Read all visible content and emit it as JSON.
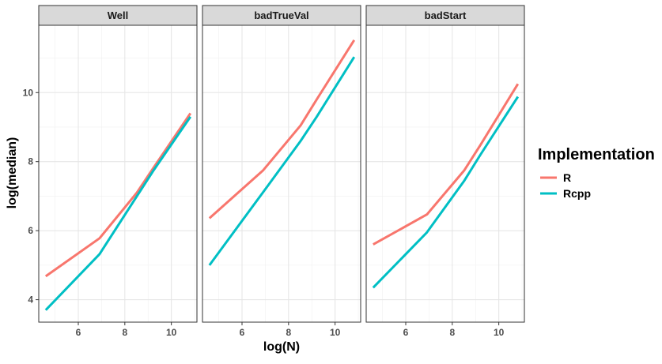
{
  "chart_data": {
    "type": "line",
    "xlabel": "log(N)",
    "ylabel": "log(median)",
    "xlim": [
      4.3,
      11.1
    ],
    "ylim": [
      3.35,
      11.95
    ],
    "x_ticks": [
      6,
      8,
      10
    ],
    "y_ticks": [
      4,
      6,
      8,
      10
    ],
    "grid": true,
    "legend": {
      "title": "Implementation",
      "position": "right",
      "entries": [
        "R",
        "Rcpp"
      ]
    },
    "colors": {
      "R": "#F8766D",
      "Rcpp": "#00BFC4"
    },
    "panels": [
      {
        "title": "Well",
        "series": [
          {
            "name": "R",
            "x": [
              4.6,
              6.91,
              8.52,
              9.21,
              10.82
            ],
            "y": [
              4.68,
              5.78,
              7.1,
              7.8,
              9.4
            ]
          },
          {
            "name": "Rcpp",
            "x": [
              4.6,
              6.91,
              8.52,
              9.21,
              10.82
            ],
            "y": [
              3.7,
              5.32,
              7.0,
              7.72,
              9.3
            ]
          }
        ]
      },
      {
        "title": "badTrueVal",
        "series": [
          {
            "name": "R",
            "x": [
              4.6,
              6.91,
              8.52,
              9.21,
              10.82
            ],
            "y": [
              6.36,
              7.75,
              9.05,
              9.8,
              11.52
            ]
          },
          {
            "name": "Rcpp",
            "x": [
              4.6,
              6.91,
              8.52,
              9.21,
              10.82
            ],
            "y": [
              5.0,
              7.12,
              8.6,
              9.3,
              11.03
            ]
          }
        ]
      },
      {
        "title": "badStart",
        "series": [
          {
            "name": "R",
            "x": [
              4.6,
              6.91,
              8.52,
              9.21,
              10.82
            ],
            "y": [
              5.6,
              6.47,
              7.75,
              8.48,
              10.25
            ]
          },
          {
            "name": "Rcpp",
            "x": [
              4.6,
              6.91,
              8.52,
              9.21,
              10.82
            ],
            "y": [
              4.35,
              5.95,
              7.45,
              8.2,
              9.88
            ]
          }
        ]
      }
    ]
  }
}
